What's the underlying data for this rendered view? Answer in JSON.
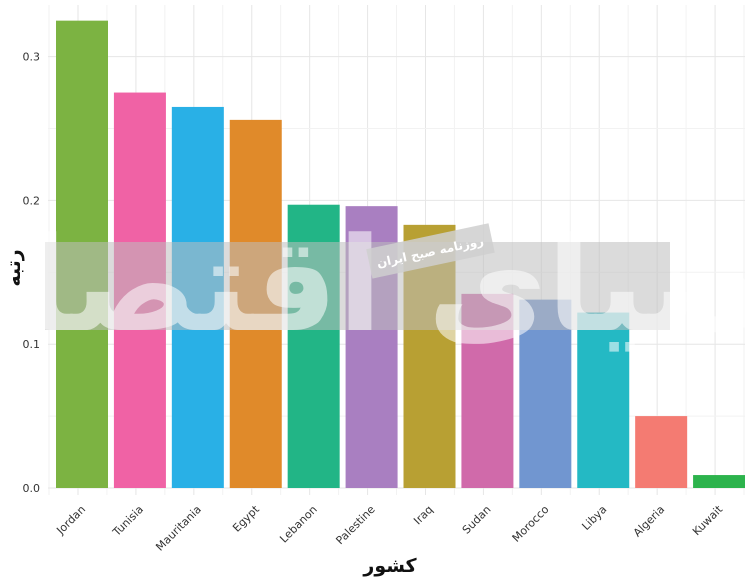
{
  "chart_data": {
    "type": "bar",
    "categories": [
      "Jordan",
      "Tunisia",
      "Mauritania",
      "Egypt",
      "Lebanon",
      "Palestine",
      "Iraq",
      "Sudan",
      "Morocco",
      "Libya",
      "Algeria",
      "Kuwait"
    ],
    "values": [
      0.325,
      0.275,
      0.265,
      0.256,
      0.197,
      0.196,
      0.183,
      0.135,
      0.131,
      0.122,
      0.05,
      0.009
    ],
    "colors": [
      "#7cb342",
      "#f062a5",
      "#29b0e6",
      "#e08a2a",
      "#22b586",
      "#a97fc1",
      "#b8a033",
      "#d06aaa",
      "#7196d0",
      "#24b9c4",
      "#f47b72",
      "#2cb34c"
    ],
    "xlabel": "کشور",
    "ylabel": "رتبه",
    "ylim": [
      0,
      0.33
    ],
    "yticks": [
      0.0,
      0.1,
      0.2,
      0.3
    ],
    "ytick_labels": [
      "0.0",
      "0.1",
      "0.2",
      "0.3"
    ],
    "grid": true,
    "legend": "none"
  },
  "watermark": {
    "text": "دنیای اقتصاد",
    "logo_text": "روزنامه صبح ایران"
  }
}
